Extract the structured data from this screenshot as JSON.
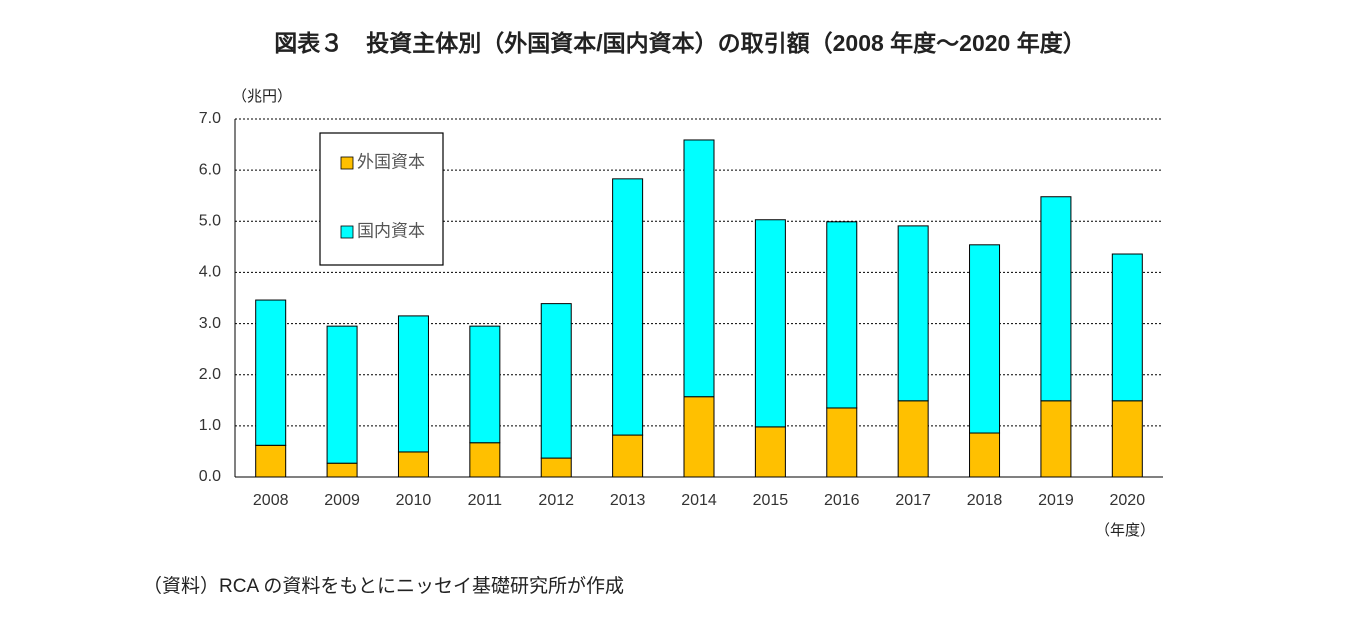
{
  "chart_data": {
    "type": "stacked_bar",
    "title": "図表３　投資主体別（外国資本/国内資本）の取引額（2008 年度～2020 年度）",
    "y_label": "（兆円）",
    "x_label": "（年度）",
    "source": "（資料）RCA の資料をもとにニッセイ基礎研究所が作成",
    "categories": [
      "2008",
      "2009",
      "2010",
      "2011",
      "2012",
      "2013",
      "2014",
      "2015",
      "2016",
      "2017",
      "2018",
      "2019",
      "2020"
    ],
    "series": [
      {
        "name": "外国資本",
        "color": "#FFC000",
        "values": [
          0.62,
          0.27,
          0.49,
          0.67,
          0.37,
          0.82,
          1.57,
          0.98,
          1.35,
          1.49,
          0.86,
          1.49,
          1.49
        ]
      },
      {
        "name": "国内資本",
        "color": "#00FFFF",
        "values": [
          2.84,
          2.68,
          2.66,
          2.28,
          3.02,
          5.01,
          5.02,
          4.05,
          3.64,
          3.42,
          3.68,
          3.99,
          2.87
        ]
      }
    ],
    "ylim": [
      0,
      7
    ],
    "yticks": [
      {
        "value": 0,
        "label": "0.0"
      },
      {
        "value": 1,
        "label": "1.0"
      },
      {
        "value": 2,
        "label": "2.0"
      },
      {
        "value": 3,
        "label": "3.0"
      },
      {
        "value": 4,
        "label": "4.0"
      },
      {
        "value": 5,
        "label": "5.0"
      },
      {
        "value": 6,
        "label": "6.0"
      },
      {
        "value": 7,
        "label": "7.0"
      }
    ],
    "grid": true,
    "legend": "upper left"
  }
}
